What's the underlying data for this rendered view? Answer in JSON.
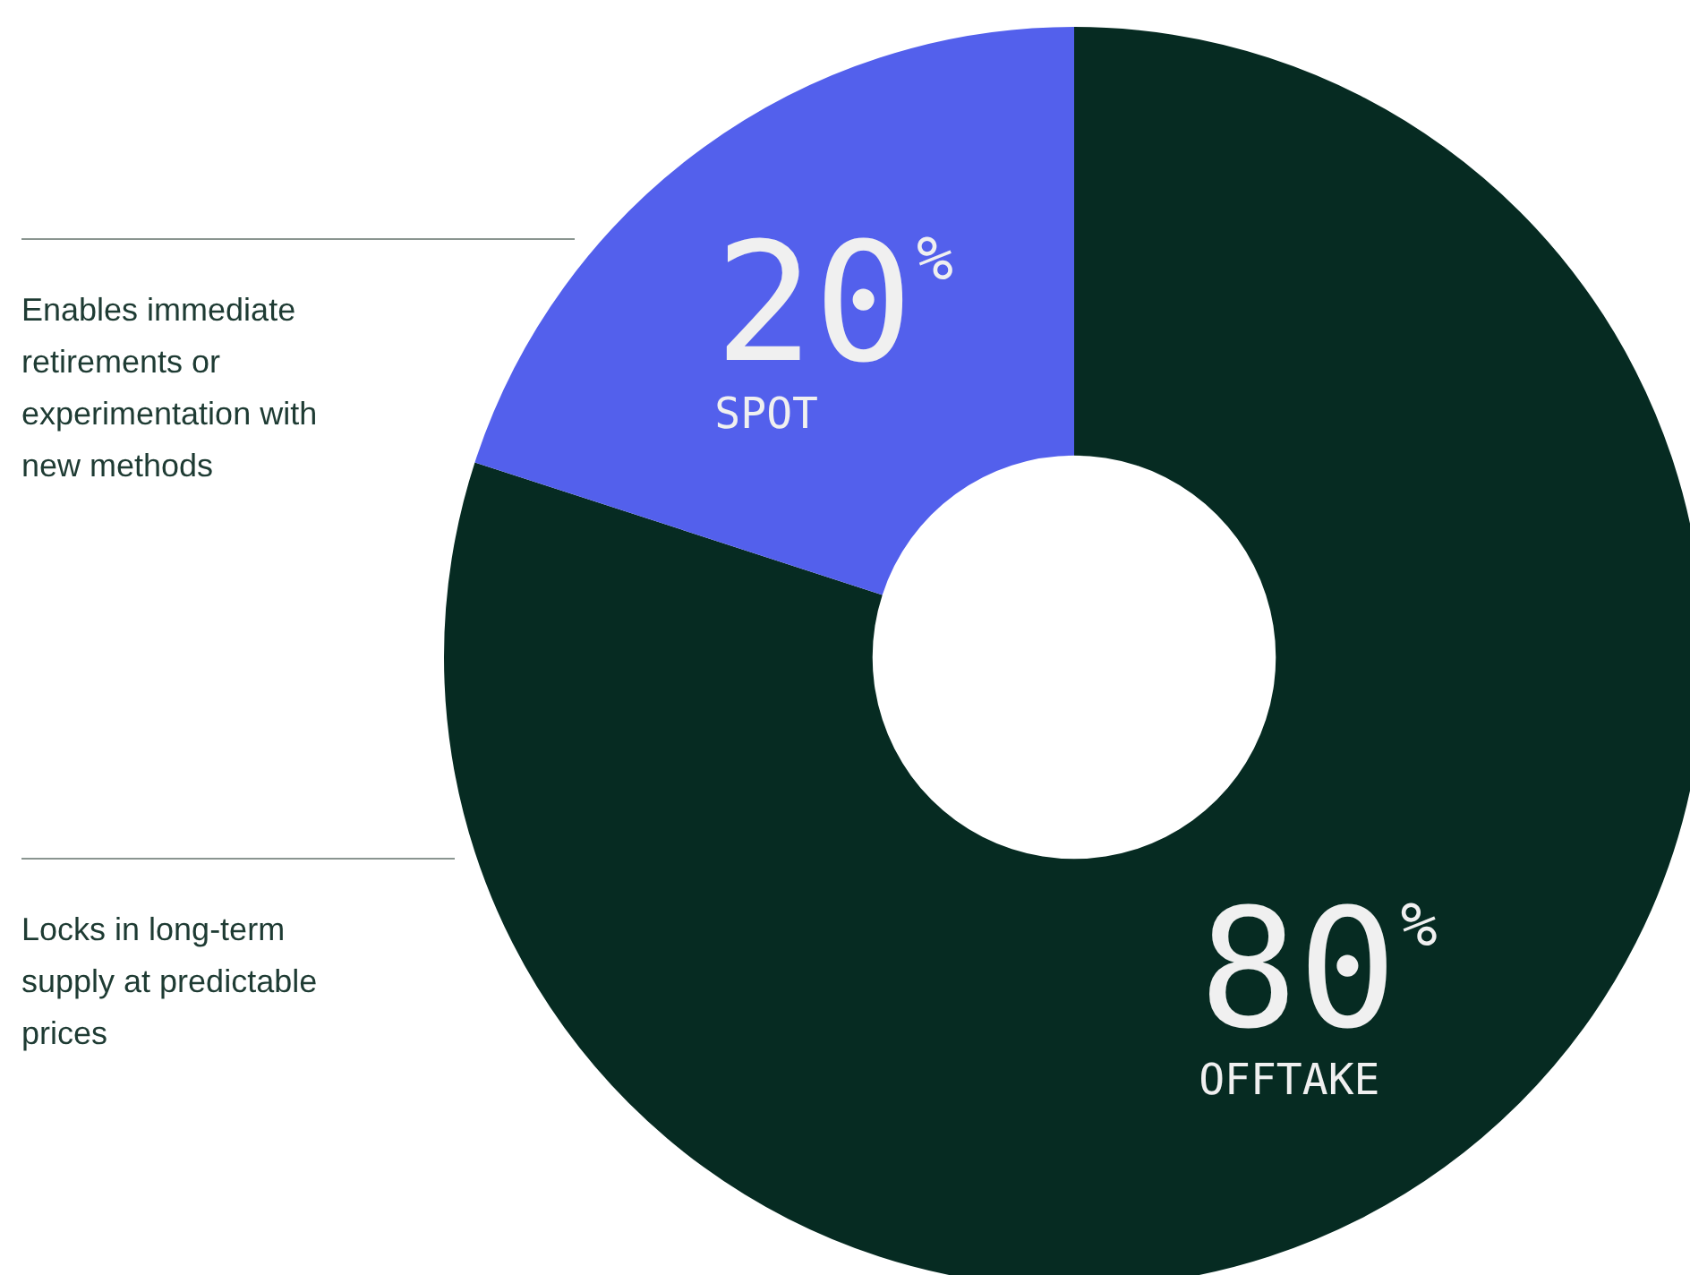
{
  "chart_data": {
    "type": "donut",
    "categories": [
      "OFFTAKE",
      "SPOT"
    ],
    "values": [
      80,
      20
    ],
    "colors": [
      "#062b22",
      "#5360ec"
    ],
    "value_labels": [
      "80%",
      "20%"
    ],
    "legend": false,
    "annotations": [
      "Enables immediate retirements or experimentation with new methods",
      "Locks in long-term supply at predictable prices"
    ]
  }
}
